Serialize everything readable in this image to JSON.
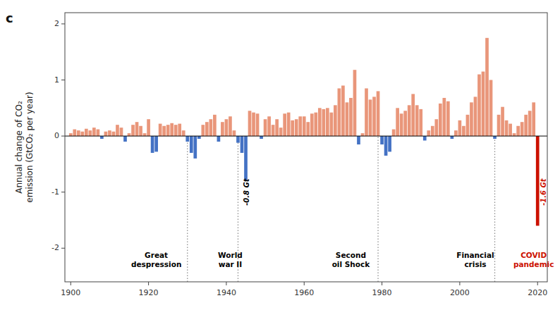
{
  "chart_data": {
    "type": "bar",
    "title": "c",
    "ylabel": "Annual change of CO₂\nemission (GtCO₂ per year)",
    "x": [
      1900,
      1901,
      1902,
      1903,
      1904,
      1905,
      1906,
      1907,
      1908,
      1909,
      1910,
      1911,
      1912,
      1913,
      1914,
      1915,
      1916,
      1917,
      1918,
      1919,
      1920,
      1921,
      1922,
      1923,
      1924,
      1925,
      1926,
      1927,
      1928,
      1929,
      1930,
      1931,
      1932,
      1933,
      1934,
      1935,
      1936,
      1937,
      1938,
      1939,
      1940,
      1941,
      1942,
      1943,
      1944,
      1945,
      1946,
      1947,
      1948,
      1949,
      1950,
      1951,
      1952,
      1953,
      1954,
      1955,
      1956,
      1957,
      1958,
      1959,
      1960,
      1961,
      1962,
      1963,
      1964,
      1965,
      1966,
      1967,
      1968,
      1969,
      1970,
      1971,
      1972,
      1973,
      1974,
      1975,
      1976,
      1977,
      1978,
      1979,
      1980,
      1981,
      1982,
      1983,
      1984,
      1985,
      1986,
      1987,
      1988,
      1989,
      1990,
      1991,
      1992,
      1993,
      1994,
      1995,
      1996,
      1997,
      1998,
      1999,
      2000,
      2001,
      2002,
      2003,
      2004,
      2005,
      2006,
      2007,
      2008,
      2009,
      2010,
      2011,
      2012,
      2013,
      2014,
      2015,
      2016,
      2017,
      2018,
      2019,
      2020
    ],
    "values": [
      0.05,
      0.12,
      0.1,
      0.08,
      0.13,
      0.1,
      0.15,
      0.12,
      -0.05,
      0.08,
      0.1,
      0.08,
      0.2,
      0.15,
      -0.1,
      0.05,
      0.2,
      0.25,
      0.18,
      0.05,
      0.3,
      -0.3,
      -0.28,
      0.22,
      0.18,
      0.2,
      0.23,
      0.2,
      0.22,
      0.1,
      -0.1,
      -0.3,
      -0.4,
      -0.05,
      0.2,
      0.25,
      0.3,
      0.38,
      -0.1,
      0.25,
      0.3,
      0.35,
      0.1,
      -0.12,
      -0.3,
      -0.8,
      0.45,
      0.42,
      0.4,
      -0.05,
      0.3,
      0.35,
      0.2,
      0.3,
      0.15,
      0.4,
      0.42,
      0.28,
      0.3,
      0.35,
      0.35,
      0.25,
      0.4,
      0.42,
      0.5,
      0.48,
      0.5,
      0.42,
      0.55,
      0.85,
      0.9,
      0.6,
      0.68,
      1.18,
      -0.15,
      0.05,
      0.85,
      0.65,
      0.7,
      0.8,
      -0.15,
      -0.35,
      -0.28,
      0.12,
      0.5,
      0.4,
      0.45,
      0.55,
      0.75,
      0.55,
      0.48,
      -0.08,
      0.1,
      0.18,
      0.3,
      0.58,
      0.68,
      0.62,
      -0.05,
      0.1,
      0.28,
      0.18,
      0.38,
      0.6,
      0.7,
      1.1,
      1.15,
      1.75,
      1.0,
      -0.05,
      0.38,
      0.52,
      0.28,
      0.22,
      0.05,
      0.18,
      0.25,
      0.38,
      0.45,
      0.6,
      -1.6
    ],
    "colors": [
      "#E9967A",
      "#E9967A",
      "#E9967A",
      "#E9967A",
      "#E9967A",
      "#E9967A",
      "#E9967A",
      "#E9967A",
      "#4472C4",
      "#E9967A",
      "#E9967A",
      "#E9967A",
      "#E9967A",
      "#E9967A",
      "#4472C4",
      "#E9967A",
      "#E9967A",
      "#E9967A",
      "#E9967A",
      "#E9967A",
      "#E9967A",
      "#4472C4",
      "#4472C4",
      "#E9967A",
      "#E9967A",
      "#E9967A",
      "#E9967A",
      "#E9967A",
      "#E9967A",
      "#E9967A",
      "#4472C4",
      "#4472C4",
      "#4472C4",
      "#4472C4",
      "#E9967A",
      "#E9967A",
      "#E9967A",
      "#E9967A",
      "#4472C4",
      "#E9967A",
      "#E9967A",
      "#E9967A",
      "#E9967A",
      "#4472C4",
      "#4472C4",
      "#4472C4",
      "#E9967A",
      "#E9967A",
      "#E9967A",
      "#4472C4",
      "#E9967A",
      "#E9967A",
      "#E9967A",
      "#E9967A",
      "#E9967A",
      "#E9967A",
      "#E9967A",
      "#E9967A",
      "#E9967A",
      "#E9967A",
      "#E9967A",
      "#E9967A",
      "#E9967A",
      "#E9967A",
      "#E9967A",
      "#E9967A",
      "#E9967A",
      "#E9967A",
      "#E9967A",
      "#E9967A",
      "#E9967A",
      "#E9967A",
      "#E9967A",
      "#E9967A",
      "#4472C4",
      "#E9967A",
      "#E9967A",
      "#E9967A",
      "#E9967A",
      "#E9967A",
      "#4472C4",
      "#4472C4",
      "#4472C4",
      "#E9967A",
      "#E9967A",
      "#E9967A",
      "#E9967A",
      "#E9967A",
      "#E9967A",
      "#E9967A",
      "#E9967A",
      "#4472C4",
      "#E9967A",
      "#E9967A",
      "#E9967A",
      "#E9967A",
      "#E9967A",
      "#E9967A",
      "#4472C4",
      "#E9967A",
      "#E9967A",
      "#E9967A",
      "#E9967A",
      "#E9967A",
      "#E9967A",
      "#E9967A",
      "#E9967A",
      "#E9967A",
      "#E9967A",
      "#4472C4",
      "#E9967A",
      "#E9967A",
      "#E9967A",
      "#E9967A",
      "#E9967A",
      "#E9967A",
      "#E9967A",
      "#E9967A",
      "#E9967A",
      "#E9967A",
      "#CC1100"
    ],
    "xlim": [
      1898.5,
      2022.5
    ],
    "ylim": [
      -2.6,
      2.2
    ],
    "xticks": [
      1900,
      1920,
      1940,
      1960,
      1980,
      2000,
      2020
    ],
    "yticks": [
      -2,
      -1,
      0,
      1,
      2
    ],
    "grid": false,
    "reference_lines": [
      {
        "x": 1930,
        "ymin": -2.6,
        "ymax": 0
      },
      {
        "x": 1943,
        "ymin": -2.6,
        "ymax": 0
      },
      {
        "x": 1979,
        "ymin": -2.6,
        "ymax": 0
      },
      {
        "x": 2009,
        "ymin": -2.6,
        "ymax": 0
      }
    ],
    "annotations": [
      {
        "x": 1922,
        "y": -2.05,
        "text": "Great\ndespression",
        "color": "black"
      },
      {
        "x": 1941,
        "y": -2.05,
        "text": "World\nwar II",
        "color": "black"
      },
      {
        "x": 1972,
        "y": -2.05,
        "text": "Second\noil Shock",
        "color": "black"
      },
      {
        "x": 2004,
        "y": -2.05,
        "text": "Financial\ncrisis",
        "color": "black"
      },
      {
        "x": 2019,
        "y": -2.05,
        "text": "COVID\npandemic",
        "color": "#CC1100"
      }
    ],
    "value_annotations": [
      {
        "x": 1944.5,
        "y": -1.0,
        "text": "-0.8 Gt",
        "color": "black"
      },
      {
        "x": 2020.8,
        "y": -1.0,
        "text": "-1.6 Gt",
        "color": "#CC1100"
      }
    ]
  }
}
